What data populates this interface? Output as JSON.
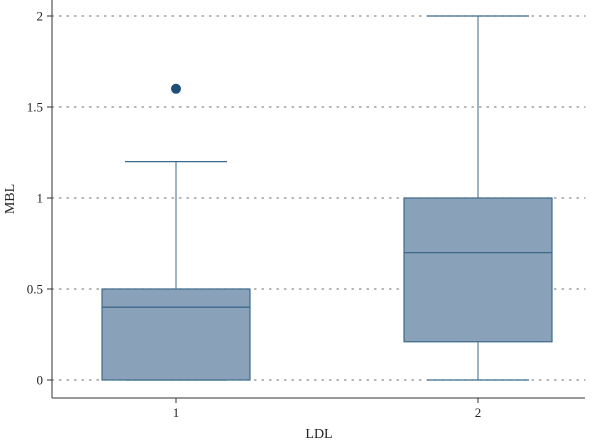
{
  "chart_data": {
    "type": "box",
    "xlabel": "LDL",
    "ylabel": "MBL",
    "ylim": [
      0,
      2
    ],
    "yticks": [
      "0",
      "0.5",
      "1",
      "1.5",
      "2"
    ],
    "ytick_values": [
      0,
      0.5,
      1,
      1.5,
      2
    ],
    "grid": true,
    "categories": [
      "1",
      "2"
    ],
    "boxes": [
      {
        "category": "1",
        "min": 0,
        "q1": 0,
        "median": 0.4,
        "q3": 0.5,
        "max": 1.2,
        "outliers": [
          1.6
        ]
      },
      {
        "category": "2",
        "min": 0,
        "q1": 0.21,
        "median": 0.7,
        "q3": 1.0,
        "max": 2.0,
        "outliers": []
      }
    ],
    "colors": {
      "box_fill": "#8aa1ba",
      "box_stroke": "#3d6a8a",
      "outlier": "#1f4e79",
      "grid": "#8a8a8a"
    }
  }
}
